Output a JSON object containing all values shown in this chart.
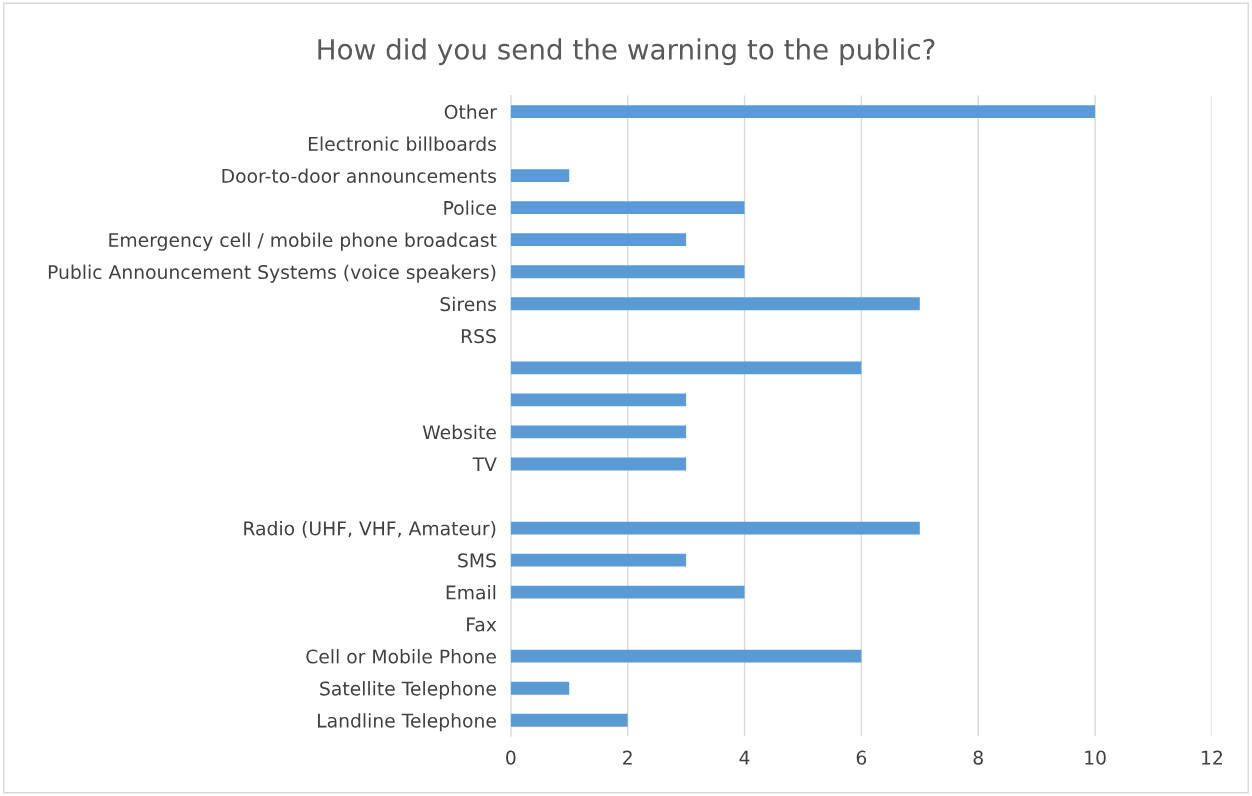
{
  "chart_data": {
    "type": "bar",
    "orientation": "horizontal",
    "title": "How did you send the warning to the public?",
    "categories": [
      "Other",
      "Electronic billboards",
      "Door-to-door announcements",
      "Police",
      "Emergency cell / mobile phone broadcast",
      "Public Announcement Systems (voice speakers)",
      "Sirens",
      "RSS",
      null,
      null,
      "Website",
      "TV",
      null,
      "Radio (UHF, VHF, Amateur)",
      "SMS",
      "Email",
      "Fax",
      "Cell or Mobile Phone",
      "Satellite Telephone",
      "Landline Telephone"
    ],
    "values": [
      10,
      0,
      1,
      4,
      3,
      4,
      7,
      0,
      6,
      3,
      3,
      3,
      0,
      7,
      3,
      4,
      0,
      6,
      1,
      2
    ],
    "color": "#5b9bd5",
    "xlim": [
      0,
      12
    ],
    "xticks": [
      0,
      2,
      4,
      6,
      8,
      10,
      12
    ],
    "grid": "x",
    "legend": false
  }
}
